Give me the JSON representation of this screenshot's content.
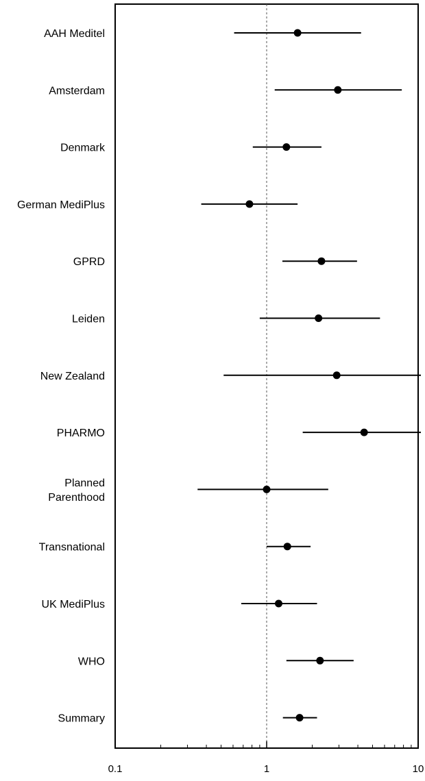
{
  "chart_data": {
    "type": "scatter",
    "subtype": "forest-plot",
    "x_scale": "log",
    "xlim": [
      0.1,
      10
    ],
    "x_tick_labels": [
      "0.1",
      "1",
      "10"
    ],
    "reference_line_x": 1,
    "grid": false,
    "legend": "none",
    "studies": [
      {
        "label": [
          "AAH Meditel"
        ],
        "estimate": 1.6,
        "ci_low": 0.61,
        "ci_high": 4.2
      },
      {
        "label": [
          "Amsterdam"
        ],
        "estimate": 2.95,
        "ci_low": 1.13,
        "ci_high": 7.8
      },
      {
        "label": [
          "Denmark"
        ],
        "estimate": 1.35,
        "ci_low": 0.81,
        "ci_high": 2.3
      },
      {
        "label": [
          "German MediPlus"
        ],
        "estimate": 0.77,
        "ci_low": 0.37,
        "ci_high": 1.6
      },
      {
        "label": [
          "GPRD"
        ],
        "estimate": 2.3,
        "ci_low": 1.27,
        "ci_high": 3.95
      },
      {
        "label": [
          "Leiden"
        ],
        "estimate": 2.2,
        "ci_low": 0.9,
        "ci_high": 5.6
      },
      {
        "label": [
          "New Zealand"
        ],
        "estimate": 2.9,
        "ci_low": 0.52,
        "ci_high": 11.0
      },
      {
        "label": [
          "PHARMO"
        ],
        "estimate": 4.4,
        "ci_low": 1.73,
        "ci_high": 11.0
      },
      {
        "label": [
          "Planned",
          "Parenthood"
        ],
        "estimate": 1.0,
        "ci_low": 0.35,
        "ci_high": 2.55
      },
      {
        "label": [
          "Transnational"
        ],
        "estimate": 1.37,
        "ci_low": 1.0,
        "ci_high": 1.95
      },
      {
        "label": [
          "UK MediPlus"
        ],
        "estimate": 1.2,
        "ci_low": 0.68,
        "ci_high": 2.15
      },
      {
        "label": [
          "WHO"
        ],
        "estimate": 2.25,
        "ci_low": 1.35,
        "ci_high": 3.75
      },
      {
        "label": [
          "Summary"
        ],
        "estimate": 1.65,
        "ci_low": 1.28,
        "ci_high": 2.15
      }
    ]
  },
  "colors": {
    "ink": "#000000",
    "background": "#ffffff",
    "reference_line": "#555555"
  }
}
